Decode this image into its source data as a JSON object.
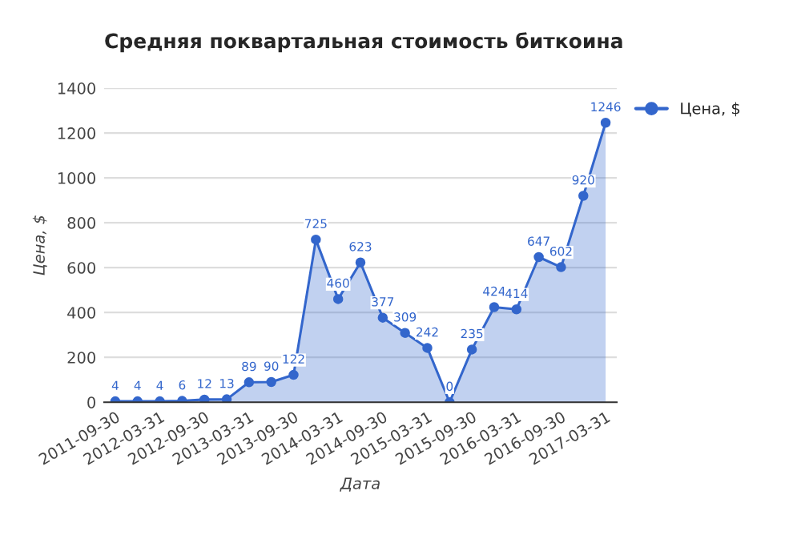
{
  "chart_data": {
    "type": "area",
    "title": "Средняя поквартальная стоимость биткоина",
    "xlabel": "Дата",
    "ylabel": "Цена, $",
    "categories": [
      "2011-09-30",
      null,
      "2012-03-31",
      null,
      "2012-09-30",
      null,
      "2013-03-31",
      null,
      "2013-09-30",
      null,
      "2014-03-31",
      null,
      "2014-09-30",
      null,
      "2015-03-31",
      null,
      "2015-09-30",
      null,
      "2016-03-31",
      null,
      "2016-09-30",
      null,
      "2017-03-31"
    ],
    "series": [
      {
        "name": "Цена, $",
        "color": "#3366cc",
        "values": [
          4,
          4,
          4,
          6,
          12,
          13,
          89,
          90,
          122,
          725,
          460,
          623,
          377,
          309,
          242,
          0,
          235,
          424,
          414,
          647,
          602,
          920,
          1246
        ]
      }
    ],
    "ylim": [
      0,
      1400
    ],
    "yticks": [
      0,
      200,
      400,
      600,
      800,
      1000,
      1200,
      1400
    ],
    "grid": "y",
    "legend": "top right",
    "marker": "circle",
    "data_labels": true
  }
}
